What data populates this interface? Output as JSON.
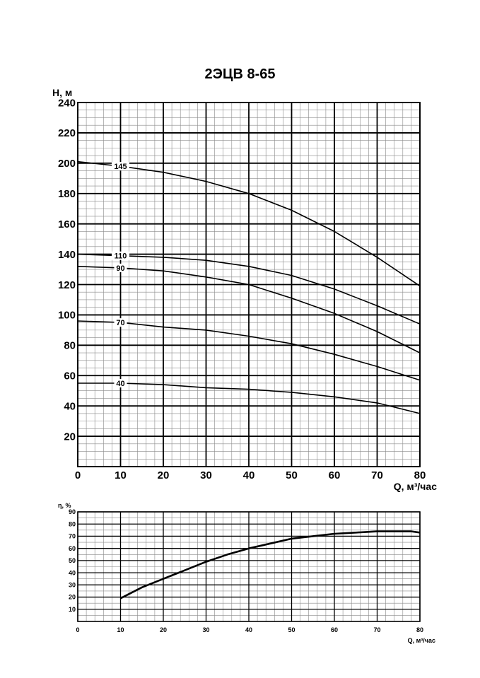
{
  "title": "2ЭЦВ 8-65",
  "chart_data": [
    {
      "type": "line",
      "ylabel": "H, м",
      "xlabel": "Q, м³/час",
      "xlim": [
        0,
        80
      ],
      "ylim": [
        0,
        240
      ],
      "xticks": [
        0,
        10,
        20,
        30,
        40,
        50,
        60,
        70,
        80
      ],
      "yticks": [
        20,
        40,
        60,
        80,
        100,
        120,
        140,
        160,
        180,
        200,
        220,
        240
      ],
      "grid": true,
      "series": [
        {
          "name": "145",
          "label_x": 10,
          "x": [
            0,
            10,
            20,
            30,
            40,
            50,
            60,
            70,
            80
          ],
          "values": [
            201,
            198,
            194,
            188,
            180,
            169,
            155,
            138,
            119
          ]
        },
        {
          "name": "110",
          "label_x": 10,
          "x": [
            0,
            10,
            20,
            30,
            40,
            50,
            60,
            70,
            80
          ],
          "values": [
            140,
            139,
            138,
            136,
            132,
            126,
            117,
            106,
            94
          ]
        },
        {
          "name": "90",
          "label_x": 10,
          "x": [
            0,
            10,
            20,
            30,
            40,
            50,
            60,
            70,
            80
          ],
          "values": [
            132,
            131,
            129,
            125,
            120,
            111,
            101,
            89,
            75
          ]
        },
        {
          "name": "70",
          "label_x": 10,
          "x": [
            0,
            10,
            20,
            30,
            40,
            50,
            60,
            70,
            80
          ],
          "values": [
            96,
            95,
            92,
            90,
            86,
            81,
            74,
            66,
            57
          ]
        },
        {
          "name": "40",
          "label_x": 10,
          "x": [
            0,
            10,
            20,
            30,
            40,
            50,
            60,
            70,
            80
          ],
          "values": [
            55,
            55,
            54,
            52,
            51,
            49,
            46,
            42,
            35
          ]
        }
      ]
    },
    {
      "type": "line",
      "ylabel": "η, %",
      "xlabel": "Q, м³/час",
      "xlim": [
        0,
        80
      ],
      "ylim": [
        0,
        90
      ],
      "xticks": [
        0,
        10,
        20,
        30,
        40,
        50,
        60,
        70,
        80
      ],
      "yticks": [
        10,
        20,
        30,
        40,
        50,
        60,
        70,
        80,
        90
      ],
      "grid": true,
      "series": [
        {
          "x": [
            10,
            15,
            20,
            25,
            30,
            35,
            40,
            45,
            50,
            55,
            60,
            65,
            70,
            75,
            78,
            80
          ],
          "values": [
            19,
            28,
            35,
            42,
            49,
            55,
            60,
            64,
            68,
            70,
            72,
            73,
            74,
            74,
            74,
            73
          ]
        }
      ]
    }
  ]
}
